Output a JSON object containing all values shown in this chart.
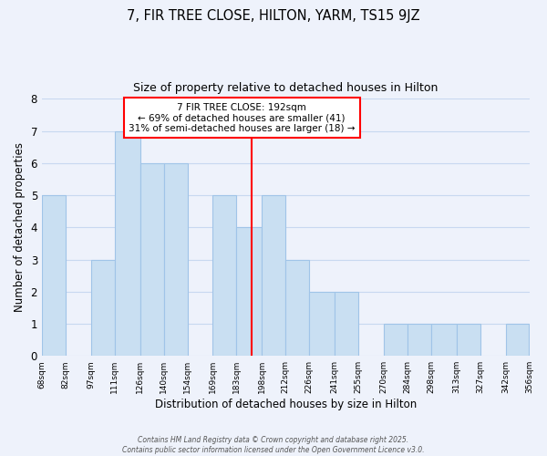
{
  "title": "7, FIR TREE CLOSE, HILTON, YARM, TS15 9JZ",
  "subtitle": "Size of property relative to detached houses in Hilton",
  "xlabel": "Distribution of detached houses by size in Hilton",
  "ylabel": "Number of detached properties",
  "bar_edges": [
    68,
    82,
    97,
    111,
    126,
    140,
    154,
    169,
    183,
    198,
    212,
    226,
    241,
    255,
    270,
    284,
    298,
    313,
    327,
    342,
    356
  ],
  "bar_heights": [
    5,
    0,
    3,
    7,
    6,
    6,
    0,
    5,
    4,
    5,
    3,
    2,
    2,
    0,
    1,
    1,
    1,
    1,
    0,
    1,
    0
  ],
  "bar_color": "#c9dff2",
  "bar_edge_color": "#a0c4e8",
  "grid_color": "#c8d8f0",
  "reference_line_x": 192,
  "reference_line_color": "red",
  "annotation_text": "7 FIR TREE CLOSE: 192sqm\n← 69% of detached houses are smaller (41)\n31% of semi-detached houses are larger (18) →",
  "annotation_box_color": "white",
  "annotation_box_edge_color": "red",
  "ylim": [
    0,
    8
  ],
  "yticks": [
    0,
    1,
    2,
    3,
    4,
    5,
    6,
    7,
    8
  ],
  "tick_labels": [
    "68sqm",
    "82sqm",
    "97sqm",
    "111sqm",
    "126sqm",
    "140sqm",
    "154sqm",
    "169sqm",
    "183sqm",
    "198sqm",
    "212sqm",
    "226sqm",
    "241sqm",
    "255sqm",
    "270sqm",
    "284sqm",
    "298sqm",
    "313sqm",
    "327sqm",
    "342sqm",
    "356sqm"
  ],
  "footer_text": "Contains HM Land Registry data © Crown copyright and database right 2025.\nContains public sector information licensed under the Open Government Licence v3.0.",
  "background_color": "#eef2fb"
}
